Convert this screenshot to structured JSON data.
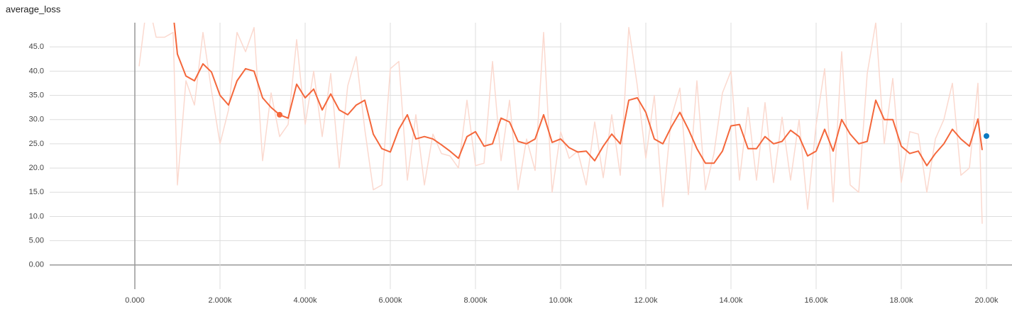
{
  "chart_data": {
    "type": "line",
    "title": "average_loss",
    "xlim": [
      -2000,
      20600
    ],
    "ylim": [
      -5,
      50
    ],
    "xticks": [
      {
        "value": 0,
        "label": "0.000"
      },
      {
        "value": 2000,
        "label": "2.000k"
      },
      {
        "value": 4000,
        "label": "4.000k"
      },
      {
        "value": 6000,
        "label": "6.000k"
      },
      {
        "value": 8000,
        "label": "8.000k"
      },
      {
        "value": 10000,
        "label": "10.00k"
      },
      {
        "value": 12000,
        "label": "12.00k"
      },
      {
        "value": 14000,
        "label": "14.00k"
      },
      {
        "value": 16000,
        "label": "16.00k"
      },
      {
        "value": 18000,
        "label": "18.00k"
      },
      {
        "value": 20000,
        "label": "20.00k"
      }
    ],
    "yticks": [
      {
        "value": 0,
        "label": "0.00"
      },
      {
        "value": 5,
        "label": "5.00"
      },
      {
        "value": 10,
        "label": "10.0"
      },
      {
        "value": 15,
        "label": "15.0"
      },
      {
        "value": 20,
        "label": "20.0"
      },
      {
        "value": 25,
        "label": "25.0"
      },
      {
        "value": 30,
        "label": "30.0"
      },
      {
        "value": 35,
        "label": "35.0"
      },
      {
        "value": 40,
        "label": "40.0"
      },
      {
        "value": 45,
        "label": "45.0"
      }
    ],
    "grid": true,
    "series": [
      {
        "color": "#fbd9cf",
        "x": [
          100,
          300,
          500,
          700,
          900,
          1000,
          1200,
          1400,
          1600,
          1800,
          2000,
          2200,
          2400,
          2600,
          2800,
          3000,
          3200,
          3400,
          3600,
          3800,
          4000,
          4200,
          4400,
          4600,
          4800,
          5000,
          5200,
          5400,
          5600,
          5800,
          6000,
          6200,
          6400,
          6600,
          6800,
          7000,
          7200,
          7400,
          7600,
          7800,
          8000,
          8200,
          8400,
          8600,
          8800,
          9000,
          9200,
          9400,
          9600,
          9800,
          10000,
          10200,
          10400,
          10600,
          10800,
          11000,
          11200,
          11400,
          11600,
          11800,
          12000,
          12200,
          12400,
          12600,
          12800,
          13000,
          13200,
          13400,
          13600,
          13800,
          14000,
          14200,
          14400,
          14600,
          14800,
          15000,
          15200,
          15400,
          15600,
          15800,
          16000,
          16200,
          16400,
          16600,
          16800,
          17000,
          17200,
          17400,
          17600,
          17800,
          18000,
          18200,
          18400,
          18600,
          18800,
          19000,
          19200,
          19400,
          19600,
          19800,
          19900
        ],
        "values": [
          41,
          55,
          47,
          47,
          48,
          16.5,
          38,
          33,
          48,
          36,
          25,
          32,
          48,
          44,
          49,
          21.5,
          35.5,
          26.5,
          29,
          46.5,
          29,
          40,
          26.5,
          39.5,
          20,
          37,
          43,
          28,
          15.5,
          16.5,
          40.5,
          42,
          17.5,
          31,
          16.5,
          27,
          23,
          22.5,
          20,
          34,
          20.5,
          21,
          42,
          21.5,
          34,
          15.5,
          26,
          19.5,
          48,
          15,
          27.5,
          22,
          23.5,
          16.5,
          29.5,
          18,
          31,
          18.5,
          49,
          37,
          22,
          35,
          12,
          30.5,
          36.5,
          14.5,
          38,
          15.5,
          23,
          35.5,
          40,
          17.5,
          32.5,
          17.5,
          33.5,
          17,
          30.5,
          17.5,
          30,
          11.5,
          29,
          40.5,
          13,
          44,
          16.5,
          15,
          39.5,
          50,
          25,
          38.5,
          17,
          27.5,
          27,
          15,
          26,
          30,
          37.5,
          18.5,
          20,
          37.5,
          8.5
        ]
      },
      {
        "color": "#f4673b",
        "x": [
          900,
          1000,
          1200,
          1400,
          1600,
          1800,
          2000,
          2200,
          2400,
          2600,
          2800,
          3000,
          3200,
          3400,
          3600,
          3800,
          4000,
          4200,
          4400,
          4600,
          4800,
          5000,
          5200,
          5400,
          5600,
          5800,
          6000,
          6200,
          6400,
          6600,
          6800,
          7000,
          7200,
          7400,
          7600,
          7800,
          8000,
          8200,
          8400,
          8600,
          8800,
          9000,
          9200,
          9400,
          9600,
          9800,
          10000,
          10200,
          10400,
          10600,
          10800,
          11000,
          11200,
          11400,
          11600,
          11800,
          12000,
          12200,
          12400,
          12600,
          12800,
          13000,
          13200,
          13400,
          13600,
          13800,
          14000,
          14200,
          14400,
          14600,
          14800,
          15000,
          15200,
          15400,
          15600,
          15800,
          16000,
          16200,
          16400,
          16600,
          16800,
          17000,
          17200,
          17400,
          17600,
          17800,
          18000,
          18200,
          18400,
          18600,
          18800,
          19000,
          19200,
          19400,
          19600,
          19800,
          19900
        ],
        "values": [
          52,
          43.5,
          39,
          38,
          41.5,
          39.8,
          35,
          33,
          38,
          40.5,
          40,
          34.5,
          32.5,
          31,
          30.3,
          37.3,
          34.5,
          36.3,
          32,
          35.3,
          32,
          31,
          33,
          34,
          27,
          24,
          23.3,
          28,
          31,
          26,
          26.5,
          26,
          24.8,
          23.5,
          22,
          26.5,
          27.5,
          24.5,
          25,
          30.3,
          29.5,
          25.5,
          25,
          26,
          31,
          25.3,
          26,
          24.2,
          23.3,
          23.5,
          21.5,
          24.5,
          27,
          25,
          34,
          34.5,
          31.5,
          26,
          25,
          28.5,
          31.5,
          28,
          24,
          21,
          21,
          23.5,
          28.7,
          29,
          24,
          24,
          26.5,
          25,
          25.5,
          27.8,
          26.5,
          22.5,
          23.5,
          28,
          23.5,
          30,
          27,
          25,
          25.5,
          34,
          30,
          30,
          24.5,
          23,
          23.5,
          20.5,
          23,
          25,
          28,
          26,
          24.5,
          30.1,
          23.7
        ]
      }
    ],
    "points": [
      {
        "x": 3400,
        "y": 31,
        "color": "#f4673b"
      },
      {
        "x": 20000,
        "y": 26.6,
        "color": "#0b7ac1"
      }
    ]
  }
}
